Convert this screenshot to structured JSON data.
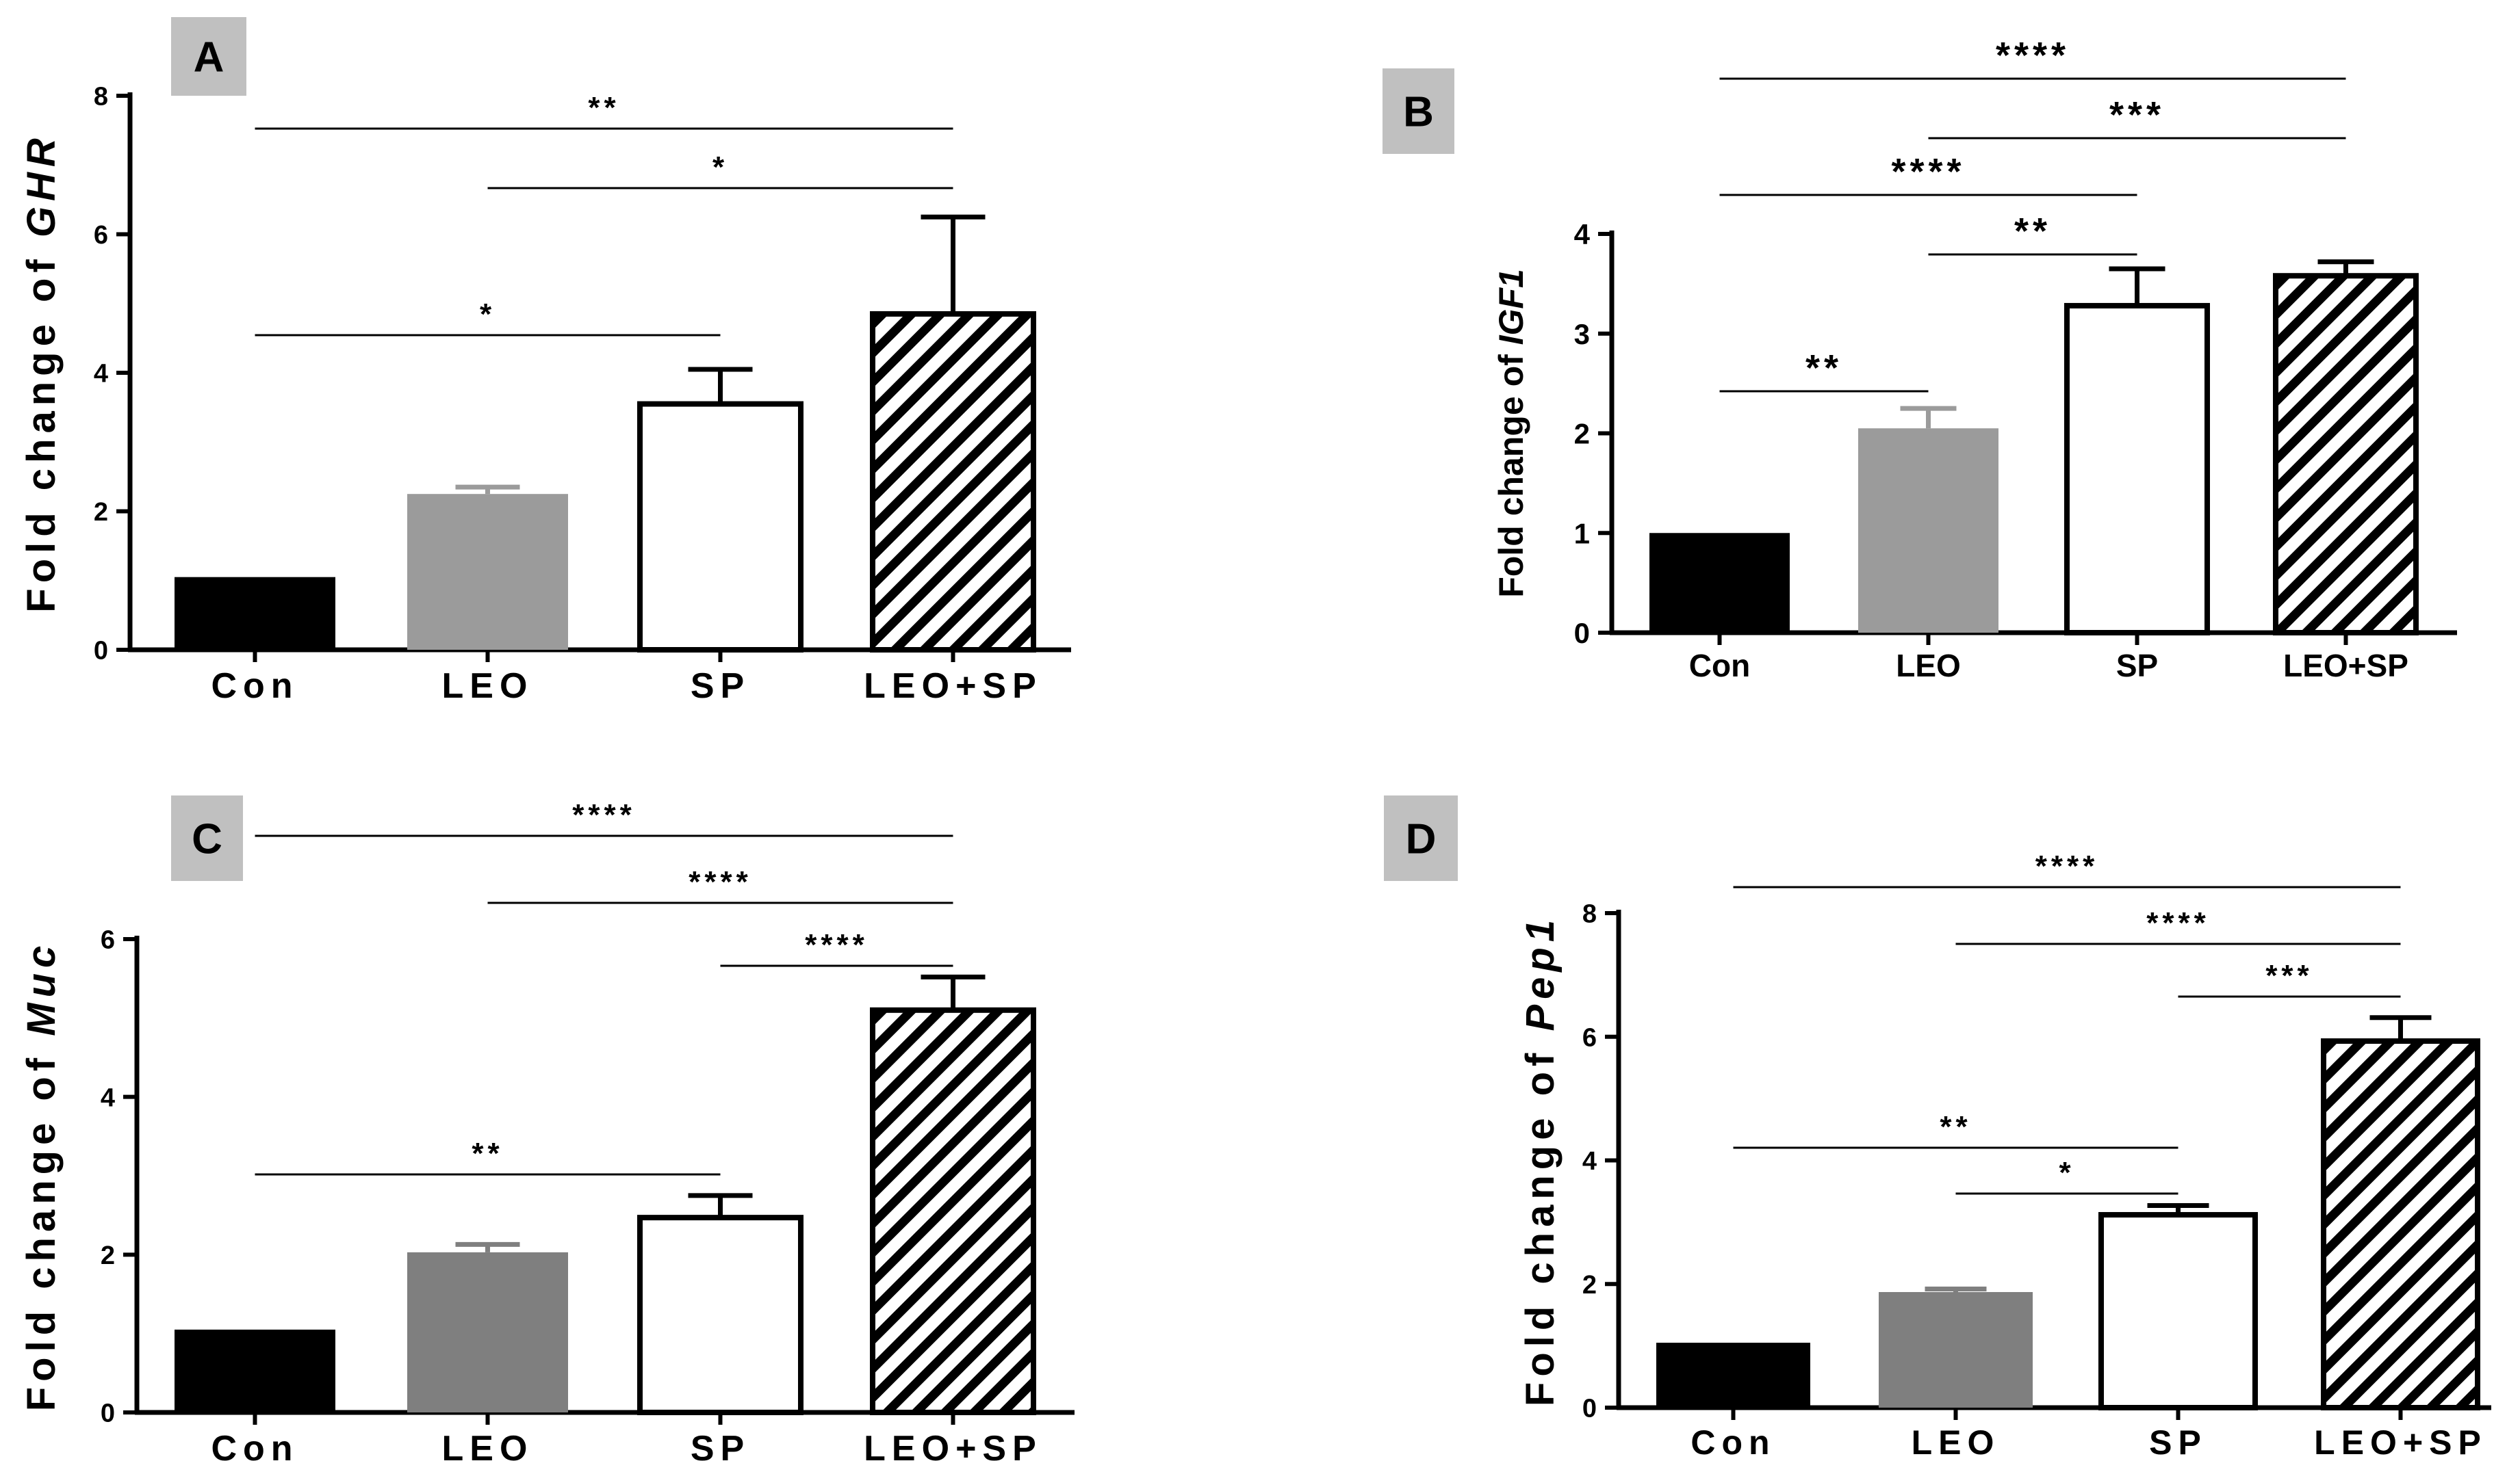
{
  "chart_data": [
    {
      "panel": "A",
      "type": "bar",
      "title": "",
      "ylabel_prefix": "Fold change of ",
      "ylabel_gene": "GHR",
      "categories": [
        "Con",
        "LEO",
        "SP",
        "LEO+SP"
      ],
      "values": [
        1.05,
        2.25,
        3.55,
        4.85
      ],
      "errors": [
        0,
        0.1,
        0.5,
        1.4
      ],
      "fills": [
        "black",
        "gray",
        "white",
        "hatch"
      ],
      "ylim": [
        0,
        8
      ],
      "yticks": [
        "0",
        "2",
        "4",
        "6",
        "8"
      ],
      "significance": [
        {
          "from": "Con",
          "to": "LEO+SP",
          "label": "**"
        },
        {
          "from": "LEO",
          "to": "LEO+SP",
          "label": "*"
        },
        {
          "from": "Con",
          "to": "SP",
          "label": "*"
        }
      ]
    },
    {
      "panel": "B",
      "type": "bar",
      "title": "",
      "ylabel_prefix": "Fold change of ",
      "ylabel_gene": "IGF1",
      "categories": [
        "Con",
        "LEO",
        "SP",
        "LEO+SP"
      ],
      "values": [
        1.0,
        2.05,
        3.28,
        3.58
      ],
      "errors": [
        0,
        0.2,
        0.37,
        0.14
      ],
      "fills": [
        "black",
        "gray",
        "white",
        "hatch"
      ],
      "ylim": [
        0,
        4
      ],
      "yticks": [
        "0",
        "1",
        "2",
        "3",
        "4"
      ],
      "significance": [
        {
          "from": "Con",
          "to": "LEO+SP",
          "label": "****"
        },
        {
          "from": "LEO",
          "to": "LEO+SP",
          "label": "***"
        },
        {
          "from": "Con",
          "to": "SP",
          "label": "****"
        },
        {
          "from": "LEO",
          "to": "SP",
          "label": "**"
        },
        {
          "from": "Con",
          "to": "LEO",
          "label": "**"
        }
      ]
    },
    {
      "panel": "C",
      "type": "bar",
      "title": "",
      "ylabel_prefix": "Fold change of ",
      "ylabel_gene": "Muc",
      "categories": [
        "Con",
        "LEO",
        "SP",
        "LEO+SP"
      ],
      "values": [
        1.05,
        2.03,
        2.47,
        5.1
      ],
      "errors": [
        0,
        0.1,
        0.28,
        0.42
      ],
      "fills": [
        "black",
        "gray",
        "white",
        "hatch"
      ],
      "ylim": [
        0,
        6
      ],
      "yticks": [
        "0",
        "2",
        "4",
        "6"
      ],
      "significance": [
        {
          "from": "Con",
          "to": "LEO+SP",
          "label": "****"
        },
        {
          "from": "LEO",
          "to": "LEO+SP",
          "label": "****"
        },
        {
          "from": "SP",
          "to": "LEO+SP",
          "label": "****"
        },
        {
          "from": "Con",
          "to": "SP",
          "label": "**"
        }
      ]
    },
    {
      "panel": "D",
      "type": "bar",
      "title": "",
      "ylabel_prefix": "Fold change of ",
      "ylabel_gene": "Pep1",
      "categories": [
        "Con",
        "LEO",
        "SP",
        "LEO+SP"
      ],
      "values": [
        1.05,
        1.87,
        3.12,
        5.93
      ],
      "errors": [
        0,
        0.05,
        0.15,
        0.38
      ],
      "fills": [
        "black",
        "gray",
        "white",
        "hatch"
      ],
      "ylim": [
        0,
        8
      ],
      "yticks": [
        "0",
        "2",
        "4",
        "6",
        "8"
      ],
      "significance": [
        {
          "from": "Con",
          "to": "LEO+SP",
          "label": "****"
        },
        {
          "from": "LEO",
          "to": "LEO+SP",
          "label": "****"
        },
        {
          "from": "SP",
          "to": "LEO+SP",
          "label": "***"
        },
        {
          "from": "Con",
          "to": "SP",
          "label": "**"
        },
        {
          "from": "LEO",
          "to": "SP",
          "label": "*"
        }
      ]
    }
  ]
}
